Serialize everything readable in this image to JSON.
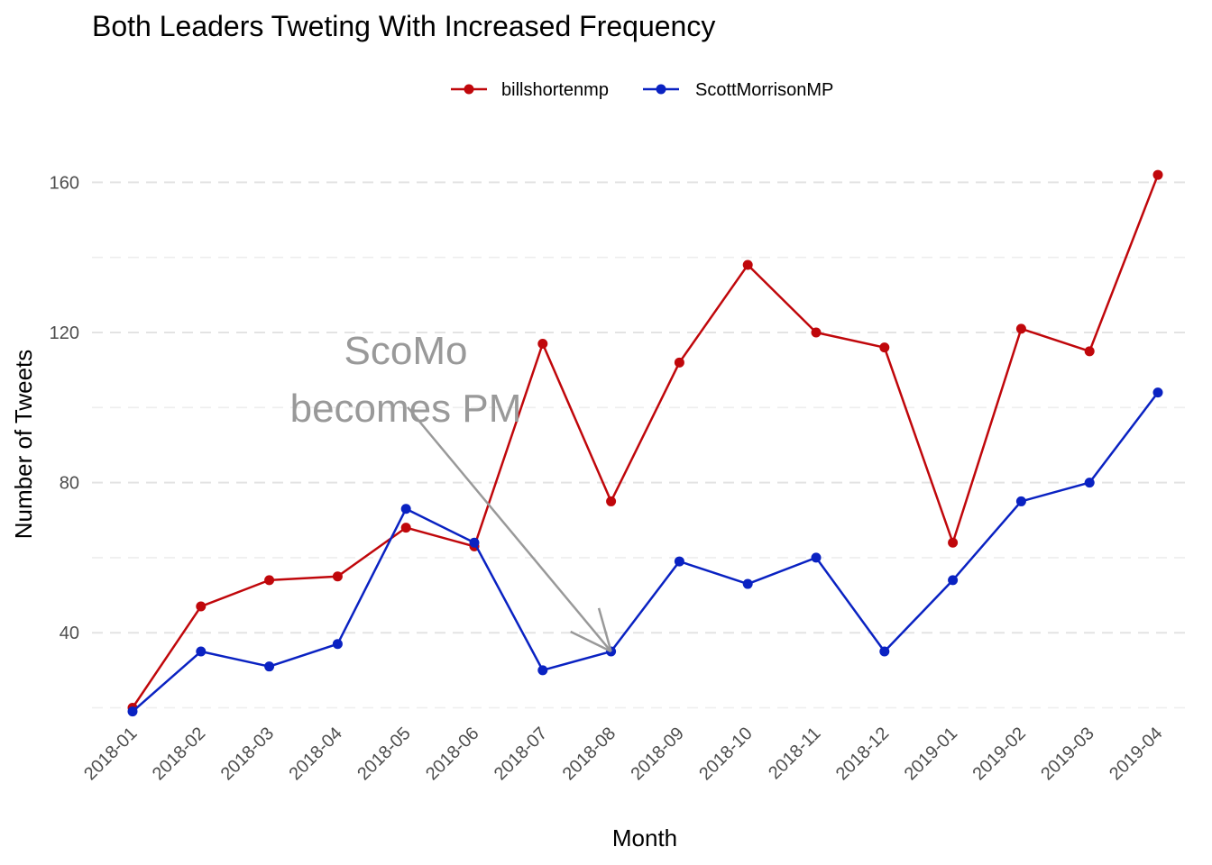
{
  "chart_data": {
    "type": "line",
    "title": "Both Leaders Tweting With Increased Frequency",
    "xlabel": "Month",
    "ylabel": "Number of Tweets",
    "x": [
      "2018-01",
      "2018-02",
      "2018-03",
      "2018-04",
      "2018-05",
      "2018-06",
      "2018-07",
      "2018-08",
      "2018-09",
      "2018-10",
      "2018-11",
      "2018-12",
      "2019-01",
      "2019-02",
      "2019-03",
      "2019-04"
    ],
    "yticks": [
      40,
      80,
      120,
      160
    ],
    "ylim": [
      20,
      162
    ],
    "grid": true,
    "legend_position": "top",
    "series": [
      {
        "name": "billshortenmp",
        "color": "#c0070b",
        "values": [
          20,
          47,
          54,
          55,
          68,
          63,
          117,
          75,
          112,
          138,
          120,
          116,
          64,
          121,
          115,
          162
        ]
      },
      {
        "name": "ScottMorrisonMP",
        "color": "#0a22c2",
        "values": [
          19,
          35,
          31,
          37,
          73,
          64,
          30,
          35,
          59,
          53,
          60,
          35,
          54,
          75,
          80,
          104
        ]
      }
    ],
    "annotation": {
      "lines": [
        "ScoMo",
        "becomes PM"
      ],
      "points_to": {
        "x": "2018-08",
        "y": 35
      },
      "color": "#999999"
    }
  }
}
